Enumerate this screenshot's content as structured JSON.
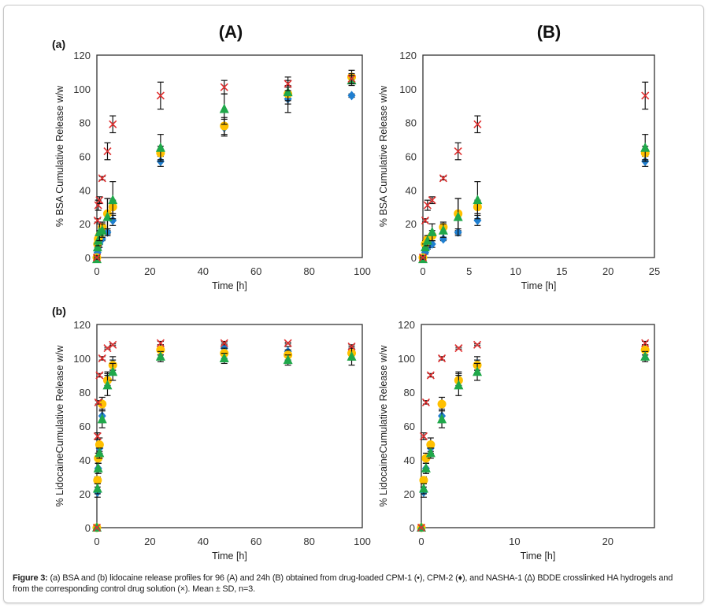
{
  "figure": {
    "column_titles": [
      "(A)",
      "(B)"
    ],
    "row_labels": [
      "(a)",
      "(b)"
    ],
    "caption_bold": "Figure 3:",
    "caption_text": " (a) BSA and (b) lidocaine release profiles for 96 (A) and 24h (B) obtained from drug-loaded CPM-1 (•), CPM-2 (♦), and NASHA-1 (∆) BDDE crosslinked HA hydrogels and from the corresponding control drug solution (×). Mean ± SD, n=3."
  },
  "series_styles": {
    "CPM-1": {
      "marker": "circle",
      "color": "#ffc000"
    },
    "CPM-2": {
      "marker": "diamond",
      "color": "#1f7fd0"
    },
    "NASHA-1": {
      "marker": "triangle",
      "color": "#1fa84a"
    },
    "Control": {
      "marker": "x",
      "color": "#e03030"
    }
  },
  "chart_data": [
    {
      "id": "Aa",
      "type": "scatter",
      "title": "(A)",
      "row": "(a)",
      "xlabel": "Time [h]",
      "ylabel": "% BSA Cumulative Release w/w",
      "xlim": [
        0,
        100
      ],
      "ylim": [
        0,
        120
      ],
      "xticks": [
        0,
        20,
        40,
        60,
        80,
        100
      ],
      "yticks": [
        0,
        20,
        40,
        60,
        80,
        100,
        120
      ],
      "grid": false,
      "series": [
        {
          "name": "Control",
          "x": [
            0,
            0.25,
            0.5,
            1,
            2,
            4,
            6,
            24,
            48,
            72,
            96
          ],
          "y": [
            0,
            22,
            31,
            34,
            47,
            63,
            79,
            96,
            101,
            103,
            106
          ],
          "err": [
            1,
            1,
            3,
            2,
            1,
            5,
            5,
            8,
            4,
            4,
            3
          ]
        },
        {
          "name": "CPM-1",
          "x": [
            0,
            0.25,
            0.5,
            1,
            2,
            4,
            6,
            24,
            48,
            72,
            96
          ],
          "y": [
            0,
            8,
            11,
            13,
            18,
            26,
            30,
            62,
            78,
            97,
            107
          ],
          "err": [
            1,
            2,
            2,
            3,
            3,
            9,
            4,
            4,
            5,
            4,
            4
          ]
        },
        {
          "name": "CPM-2",
          "x": [
            0,
            0.25,
            0.5,
            1,
            2,
            4,
            6,
            24,
            48,
            72,
            96
          ],
          "y": [
            0,
            3,
            6,
            8,
            11,
            15,
            22,
            57,
            77,
            94,
            96
          ],
          "err": [
            1,
            1,
            1,
            2,
            1,
            1,
            3,
            3,
            5,
            8,
            1
          ]
        },
        {
          "name": "NASHA-1",
          "x": [
            0,
            0.25,
            0.5,
            1,
            2,
            4,
            6,
            24,
            48,
            72,
            96
          ],
          "y": [
            -1,
            6,
            10,
            15,
            16,
            24,
            34,
            65,
            88,
            98,
            105
          ],
          "err": [
            1,
            2,
            3,
            5,
            4,
            11,
            11,
            8,
            9,
            7,
            3
          ]
        }
      ]
    },
    {
      "id": "Ba",
      "type": "scatter",
      "title": "(B)",
      "row": "(a)",
      "xlabel": "Time [h]",
      "ylabel": "% BSA Cumulative Release w/w",
      "xlim": [
        0,
        25
      ],
      "ylim": [
        0,
        120
      ],
      "xticks": [
        0,
        5,
        10,
        15,
        20,
        25
      ],
      "yticks": [
        0,
        20,
        40,
        60,
        80,
        100,
        120
      ],
      "grid": false,
      "series": [
        {
          "name": "Control",
          "x": [
            0,
            0.25,
            0.5,
            1,
            2.2,
            3.8,
            5.9,
            24
          ],
          "y": [
            0,
            22,
            31,
            34,
            47,
            63,
            79,
            96
          ],
          "err": [
            1,
            1,
            3,
            2,
            1,
            5,
            5,
            8
          ]
        },
        {
          "name": "CPM-1",
          "x": [
            0,
            0.25,
            0.5,
            1,
            2.2,
            3.8,
            5.9,
            24
          ],
          "y": [
            0,
            8,
            11,
            13,
            18,
            26,
            30,
            62
          ],
          "err": [
            1,
            2,
            2,
            3,
            3,
            9,
            4,
            4
          ]
        },
        {
          "name": "CPM-2",
          "x": [
            0,
            0.25,
            0.5,
            1,
            2.2,
            3.8,
            5.9,
            24
          ],
          "y": [
            0,
            3,
            6,
            8,
            11,
            15,
            22,
            57
          ],
          "err": [
            1,
            1,
            1,
            2,
            1,
            1,
            3,
            3
          ]
        },
        {
          "name": "NASHA-1",
          "x": [
            0,
            0.25,
            0.5,
            1,
            2.2,
            3.8,
            5.9,
            24
          ],
          "y": [
            -1,
            6,
            10,
            15,
            16,
            24,
            34,
            65
          ],
          "err": [
            1,
            2,
            3,
            5,
            4,
            11,
            11,
            8
          ]
        }
      ]
    },
    {
      "id": "Ab",
      "type": "scatter",
      "title": "(A)",
      "row": "(b)",
      "xlabel": "Time [h]",
      "ylabel": "% LidocaineCumulative Release w/w",
      "xlim": [
        0,
        100
      ],
      "ylim": [
        0,
        120
      ],
      "xticks": [
        0,
        20,
        40,
        60,
        80,
        100
      ],
      "yticks": [
        0,
        20,
        40,
        60,
        80,
        100,
        120
      ],
      "grid": false,
      "series": [
        {
          "name": "Control",
          "x": [
            0,
            0.25,
            0.5,
            1,
            2,
            4,
            6,
            24,
            48,
            72,
            96
          ],
          "y": [
            0,
            54,
            74,
            90,
            100,
            106,
            108,
            109,
            109,
            109,
            107
          ],
          "err": [
            0,
            2,
            1,
            1,
            1,
            0.5,
            0.5,
            1,
            1,
            0.5,
            1
          ]
        },
        {
          "name": "CPM-1",
          "x": [
            0,
            0.25,
            0.5,
            1,
            2,
            4,
            6,
            24,
            48,
            72,
            96
          ],
          "y": [
            0,
            28,
            41,
            49,
            73,
            87,
            96,
            105,
            103,
            102,
            103
          ],
          "err": [
            0,
            2,
            3,
            4,
            4,
            4,
            3,
            3,
            3,
            3,
            3
          ]
        },
        {
          "name": "CPM-2",
          "x": [
            0,
            0.25,
            0.5,
            1,
            2,
            4,
            6,
            24,
            48,
            72,
            96
          ],
          "y": [
            0,
            21,
            35,
            47,
            66,
            88,
            97,
            105,
            106,
            104,
            103
          ],
          "err": [
            0,
            3,
            3,
            3,
            4,
            4,
            4,
            3,
            3,
            3,
            4
          ]
        },
        {
          "name": "NASHA-1",
          "x": [
            0,
            0.25,
            0.5,
            1,
            2,
            4,
            6,
            24,
            48,
            72,
            96
          ],
          "y": [
            0,
            23,
            35,
            44,
            64,
            84,
            92,
            101,
            100,
            99,
            101
          ],
          "err": [
            0,
            3,
            3,
            3,
            5,
            6,
            5,
            3,
            3,
            3,
            5
          ]
        }
      ]
    },
    {
      "id": "Bb",
      "type": "scatter",
      "title": "(B)",
      "row": "(b)",
      "xlabel": "Time [h]",
      "ylabel": "% LidocaineCumulative Release w/w",
      "xlim": [
        0,
        25
      ],
      "ylim": [
        0,
        120
      ],
      "xticks": [
        0,
        10,
        20
      ],
      "yticks": [
        0,
        20,
        40,
        60,
        80,
        100,
        120
      ],
      "grid": false,
      "series": [
        {
          "name": "Control",
          "x": [
            0,
            0.25,
            0.5,
            1,
            2.2,
            4,
            6,
            24
          ],
          "y": [
            0,
            54,
            74,
            90,
            100,
            106,
            108,
            109
          ],
          "err": [
            0,
            2,
            1,
            1,
            1,
            0.5,
            0.5,
            1
          ]
        },
        {
          "name": "CPM-1",
          "x": [
            0,
            0.25,
            0.5,
            1,
            2.2,
            4,
            6,
            24
          ],
          "y": [
            0,
            28,
            41,
            49,
            73,
            87,
            96,
            105
          ],
          "err": [
            0,
            2,
            3,
            4,
            4,
            4,
            3,
            3
          ]
        },
        {
          "name": "CPM-2",
          "x": [
            0,
            0.25,
            0.5,
            1,
            2.2,
            4,
            6,
            24
          ],
          "y": [
            0,
            21,
            35,
            47,
            66,
            88,
            97,
            105
          ],
          "err": [
            0,
            3,
            3,
            3,
            4,
            4,
            4,
            3
          ]
        },
        {
          "name": "NASHA-1",
          "x": [
            0,
            0.25,
            0.5,
            1,
            2.2,
            4,
            6,
            24
          ],
          "y": [
            0,
            23,
            35,
            44,
            64,
            84,
            92,
            101
          ],
          "err": [
            0,
            3,
            3,
            3,
            5,
            6,
            5,
            3
          ]
        }
      ]
    }
  ]
}
